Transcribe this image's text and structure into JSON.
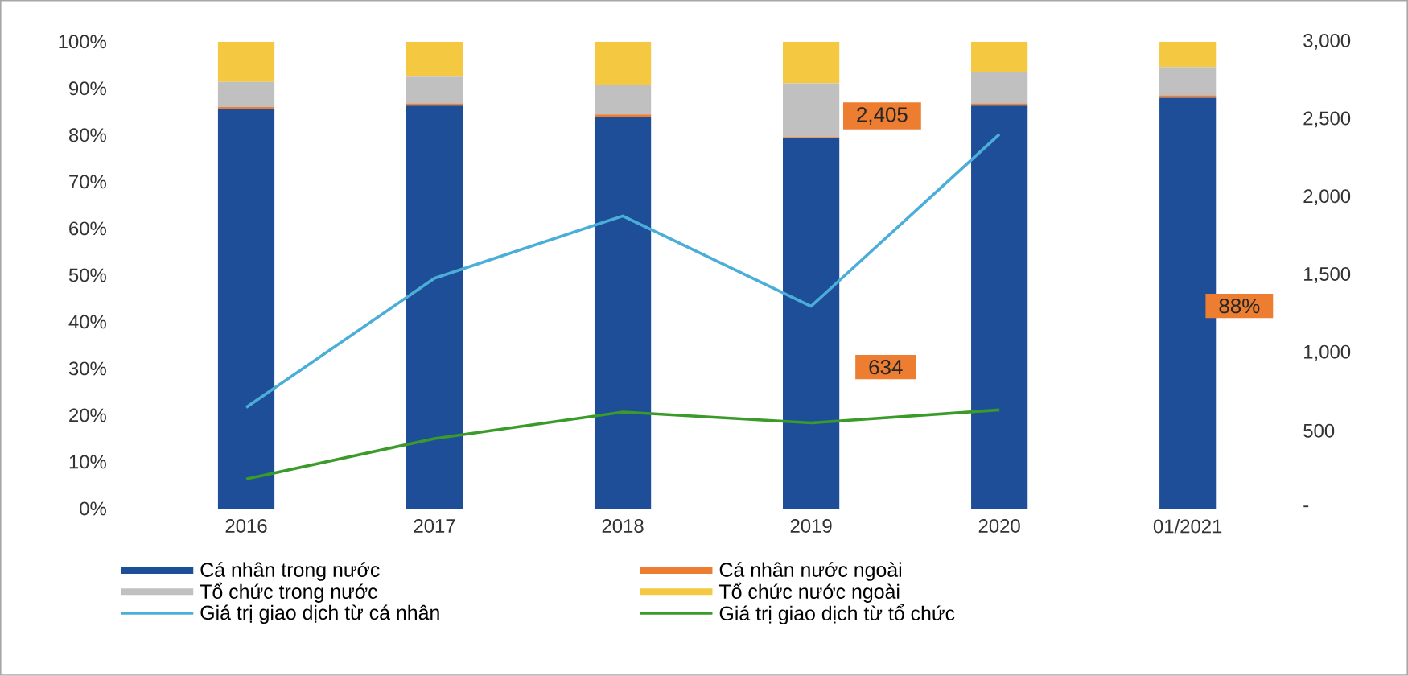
{
  "chart_data": {
    "type": "bar",
    "stacked": true,
    "categories": [
      "2016",
      "2017",
      "2018",
      "2019",
      "2020",
      "01/2021"
    ],
    "series": [
      {
        "name": "Cá nhân trong nước",
        "color": "#1f4e99",
        "values": [
          85.5,
          86.3,
          83.9,
          79.3,
          86.3,
          88
        ]
      },
      {
        "name": "Cá nhân nước ngoài",
        "color": "#ed7d31",
        "values": [
          0.5,
          0.5,
          0.5,
          0.3,
          0.5,
          0.5
        ]
      },
      {
        "name": "Tổ chức trong nước",
        "color": "#c0c0c0",
        "values": [
          5.4,
          5.7,
          6.4,
          11.5,
          6.6,
          6.1
        ]
      },
      {
        "name": "Tổ chức nước ngoài",
        "color": "#f5c842",
        "values": [
          8.6,
          7.5,
          9.2,
          8.9,
          6.6,
          5.4
        ]
      },
      {
        "name": "Giá trị giao dịch từ cá nhân",
        "type": "line",
        "axis": "y2",
        "color": "#4aaed9",
        "values": [
          650,
          1480,
          1880,
          1300,
          2405,
          null
        ]
      },
      {
        "name": "Giá trị giao dịch từ tổ chức",
        "type": "line",
        "axis": "y2",
        "color": "#3a9a2a",
        "values": [
          190,
          450,
          620,
          550,
          634,
          null
        ]
      }
    ],
    "ylim": [
      0,
      100
    ],
    "yticks": [
      {
        "value": 0,
        "label": "0%"
      },
      {
        "value": 10,
        "label": "10%"
      },
      {
        "value": 20,
        "label": "20%"
      },
      {
        "value": 30,
        "label": "30%"
      },
      {
        "value": 40,
        "label": "40%"
      },
      {
        "value": 50,
        "label": "50%"
      },
      {
        "value": 60,
        "label": "60%"
      },
      {
        "value": 70,
        "label": "70%"
      },
      {
        "value": 80,
        "label": "80%"
      },
      {
        "value": 90,
        "label": "90%"
      },
      {
        "value": 100,
        "label": "100%"
      }
    ],
    "y2lim": [
      0,
      3000
    ],
    "y2ticks": [
      {
        "value": 0,
        "label": "-"
      },
      {
        "value": 500,
        "label": "500"
      },
      {
        "value": 1000,
        "label": "1,000"
      },
      {
        "value": 1500,
        "label": "1,500"
      },
      {
        "value": 2000,
        "label": "2,000"
      },
      {
        "value": 2500,
        "label": "2,500"
      },
      {
        "value": 3000,
        "label": "3,000"
      }
    ],
    "annotations": [
      "2,405",
      "634",
      "88%"
    ],
    "grid": false,
    "legend": "bottom"
  }
}
